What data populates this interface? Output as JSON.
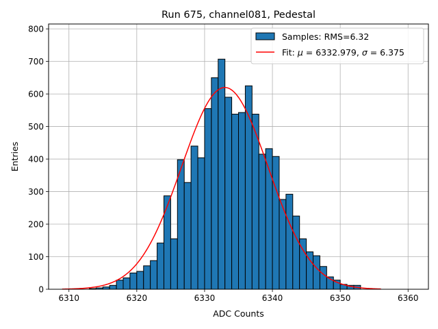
{
  "chart_data": {
    "type": "bar",
    "title": "Run 675, channel081, Pedestal",
    "xlabel": "ADC Counts",
    "ylabel": "Entries",
    "xlim": [
      6307,
      6363
    ],
    "ylim": [
      0,
      815
    ],
    "xticks": [
      6310,
      6320,
      6330,
      6340,
      6350,
      6360
    ],
    "yticks": [
      0,
      100,
      200,
      300,
      400,
      500,
      600,
      700,
      800
    ],
    "grid": true,
    "legend_position": "top-right",
    "bin_width": 1,
    "histogram": {
      "name": "Samples: RMS=6.32",
      "color": "#1f77b4",
      "edge_color": "#000000",
      "bin_starts": [
        6313,
        6314,
        6315,
        6316,
        6317,
        6318,
        6319,
        6320,
        6321,
        6322,
        6323,
        6324,
        6325,
        6326,
        6327,
        6328,
        6329,
        6330,
        6331,
        6332,
        6333,
        6334,
        6335,
        6336,
        6337,
        6338,
        6339,
        6340,
        6341,
        6342,
        6343,
        6344,
        6345,
        6346,
        6347,
        6348,
        6349,
        6350,
        6351,
        6352
      ],
      "counts": [
        2,
        4,
        7,
        12,
        28,
        35,
        50,
        55,
        72,
        88,
        142,
        287,
        155,
        398,
        328,
        440,
        404,
        555,
        650,
        707,
        590,
        538,
        543,
        625,
        538,
        415,
        432,
        408,
        276,
        292,
        225,
        155,
        115,
        103,
        70,
        38,
        28,
        15,
        12,
        12
      ]
    },
    "fit": {
      "name": "Fit: μ = 6332.979, σ = 6.375",
      "color": "#ff0000",
      "mu": 6332.979,
      "sigma": 6.375,
      "amplitude": 620,
      "x_range": [
        6309,
        6356
      ]
    },
    "legend": {
      "hist_prefix": "Samples: RMS=6.32",
      "fit_prefix": "Fit: ",
      "mu_symbol": "μ",
      "fit_mu_text": " = 6332.979, ",
      "sigma_symbol": "σ",
      "fit_sigma_text": " = 6.375"
    }
  }
}
